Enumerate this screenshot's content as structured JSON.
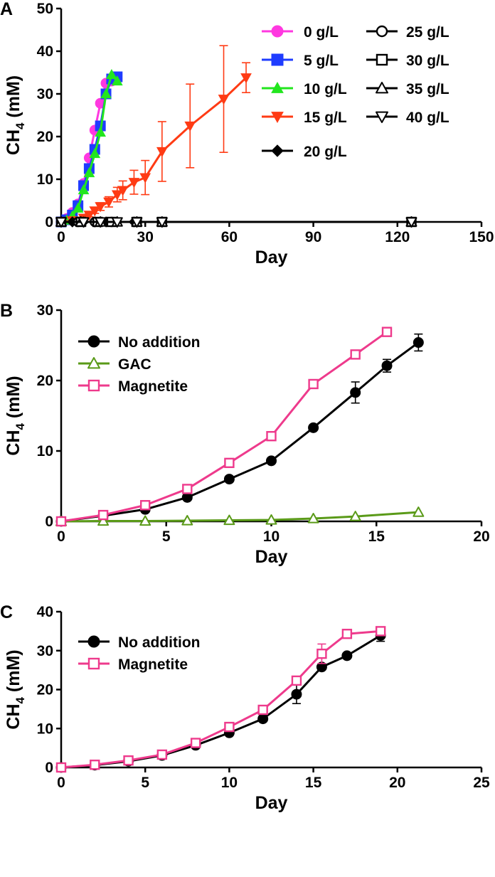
{
  "chart_data": [
    {
      "type": "line",
      "panel": "A",
      "xlabel": "Day",
      "ylabel": "CH4 (mM)",
      "xlim": [
        0,
        150
      ],
      "ylim": [
        0,
        50
      ],
      "xticks": [
        "0",
        "30",
        "60",
        "90",
        "120",
        "150"
      ],
      "yticks": [
        "0",
        "10",
        "20",
        "30",
        "40",
        "50"
      ],
      "legend_columns": 2,
      "legend_placement": "top-right",
      "series": [
        {
          "name": "0 g/L",
          "color": "#ff38e0",
          "marker": "circle-filled",
          "x": [
            0,
            2,
            4,
            6,
            8,
            10,
            12,
            14,
            16,
            18,
            19.5
          ],
          "y": [
            0,
            0.8,
            2.2,
            4.2,
            9,
            15,
            21.5,
            27.8,
            32.5,
            33,
            33.5
          ]
        },
        {
          "name": "5 g/L",
          "color": "#1f3cff",
          "marker": "square-filled",
          "x": [
            0,
            2,
            4,
            6,
            8,
            10,
            12,
            14,
            16,
            18,
            20
          ],
          "y": [
            0,
            0.5,
            1.6,
            3.8,
            8.5,
            12.5,
            17,
            22.5,
            30,
            33.5,
            34
          ]
        },
        {
          "name": "10 g/L",
          "color": "#22e61e",
          "marker": "triangle-up-filled",
          "x": [
            0,
            2,
            4,
            6,
            8,
            10,
            12,
            14,
            16,
            18,
            20
          ],
          "y": [
            0,
            0.4,
            1.4,
            3.2,
            7.5,
            11.5,
            16,
            21,
            30,
            34.5,
            33
          ]
        },
        {
          "name": "15 g/L",
          "color": "#ff3b14",
          "marker": "triangle-down-filled",
          "x": [
            0,
            4,
            8,
            10,
            12,
            14,
            17,
            20,
            22,
            26,
            30,
            36,
            46,
            58,
            66
          ],
          "y": [
            0,
            0.3,
            0.9,
            1.6,
            2.6,
            3.6,
            4.7,
            6.4,
            7.4,
            9.3,
            10.4,
            16.5,
            22.5,
            28.8,
            33.8
          ],
          "error": [
            0,
            0,
            0.3,
            0.4,
            0.6,
            0.9,
            1.2,
            1.7,
            2.2,
            2.8,
            4,
            7,
            9.8,
            12.5,
            3.5
          ]
        },
        {
          "name": "20 g/L",
          "color": "#000000",
          "marker": "diamond-filled",
          "x": [
            0,
            4,
            8,
            12,
            16,
            20,
            26,
            36,
            125
          ],
          "y": [
            0,
            0,
            0,
            0,
            0,
            0,
            0,
            0,
            0
          ]
        },
        {
          "name": "25 g/L",
          "color": "#000000",
          "marker": "circle-open",
          "x": [
            0,
            6,
            12,
            18,
            27,
            36,
            125
          ],
          "y": [
            0,
            0,
            0,
            0,
            0,
            0,
            0
          ]
        },
        {
          "name": "30 g/L",
          "color": "#000000",
          "marker": "square-open",
          "x": [
            0,
            7,
            13,
            18,
            27,
            36,
            125
          ],
          "y": [
            0,
            0,
            0,
            0,
            0,
            0,
            0
          ]
        },
        {
          "name": "35 g/L",
          "color": "#000000",
          "marker": "triangle-up-open",
          "x": [
            0,
            7,
            14,
            20,
            27,
            36,
            125
          ],
          "y": [
            0,
            0,
            0,
            0,
            0,
            0,
            0
          ]
        },
        {
          "name": "40 g/L",
          "color": "#000000",
          "marker": "triangle-down-open",
          "x": [
            0,
            8,
            14,
            20,
            27,
            36,
            125
          ],
          "y": [
            0,
            0,
            0,
            0,
            0,
            0,
            0
          ]
        }
      ]
    },
    {
      "type": "line",
      "panel": "B",
      "xlabel": "Day",
      "ylabel": "CH4 (mM)",
      "xlim": [
        0,
        20
      ],
      "ylim": [
        0,
        30
      ],
      "xticks": [
        "0",
        "5",
        "10",
        "15",
        "20"
      ],
      "yticks": [
        "0",
        "10",
        "20",
        "30"
      ],
      "legend_columns": 1,
      "legend_placement": "top-left",
      "series": [
        {
          "name": "No addition",
          "color": "#000000",
          "marker": "circle-filled",
          "x": [
            0,
            2,
            4,
            6,
            8,
            10,
            12,
            14,
            15.5,
            17
          ],
          "y": [
            0,
            0.8,
            1.7,
            3.4,
            6,
            8.6,
            13.3,
            18.3,
            22.1,
            25.4
          ],
          "error": [
            0,
            0,
            0,
            0,
            0,
            0,
            0,
            1.5,
            0.9,
            1.2
          ]
        },
        {
          "name": "GAC",
          "color": "#5a9a18",
          "marker": "triangle-up-open",
          "x": [
            0,
            2,
            4,
            6,
            8,
            10,
            12,
            14,
            17
          ],
          "y": [
            0,
            0.05,
            0.05,
            0.1,
            0.15,
            0.2,
            0.4,
            0.7,
            1.3
          ]
        },
        {
          "name": "Magnetite",
          "color": "#ee3a8c",
          "marker": "square-open",
          "x": [
            0,
            2,
            4,
            6,
            8,
            10,
            12,
            14,
            15.5
          ],
          "y": [
            0,
            0.9,
            2.3,
            4.6,
            8.3,
            12.1,
            19.5,
            23.7,
            26.9
          ]
        }
      ]
    },
    {
      "type": "line",
      "panel": "C",
      "xlabel": "Day",
      "ylabel": "CH4 (mM)",
      "xlim": [
        0,
        25
      ],
      "ylim": [
        0,
        40
      ],
      "xticks": [
        "0",
        "5",
        "10",
        "15",
        "20",
        "25"
      ],
      "yticks": [
        "0",
        "10",
        "20",
        "30",
        "40"
      ],
      "legend_columns": 1,
      "legend_placement": "top-left",
      "series": [
        {
          "name": "No addition",
          "color": "#000000",
          "marker": "circle-filled",
          "x": [
            0,
            2,
            4,
            6,
            8,
            10,
            12,
            14,
            15.5,
            17,
            19
          ],
          "y": [
            0,
            0.6,
            1.6,
            3.1,
            5.7,
            8.9,
            12.5,
            18.8,
            25.8,
            28.7,
            33.9
          ],
          "error": [
            0,
            0,
            0,
            0,
            0,
            0,
            0,
            2.4,
            0,
            0,
            1.5
          ]
        },
        {
          "name": "Magnetite",
          "color": "#ee3a8c",
          "marker": "square-open",
          "x": [
            0,
            2,
            4,
            6,
            8,
            10,
            12,
            14,
            15.5,
            17,
            19
          ],
          "y": [
            0,
            0.7,
            1.8,
            3.3,
            6.3,
            10.4,
            14.8,
            22.3,
            29.2,
            34.3,
            35
          ],
          "error": [
            0,
            0,
            0,
            0,
            0,
            0,
            0,
            0,
            2.5,
            0,
            0
          ]
        }
      ]
    }
  ]
}
